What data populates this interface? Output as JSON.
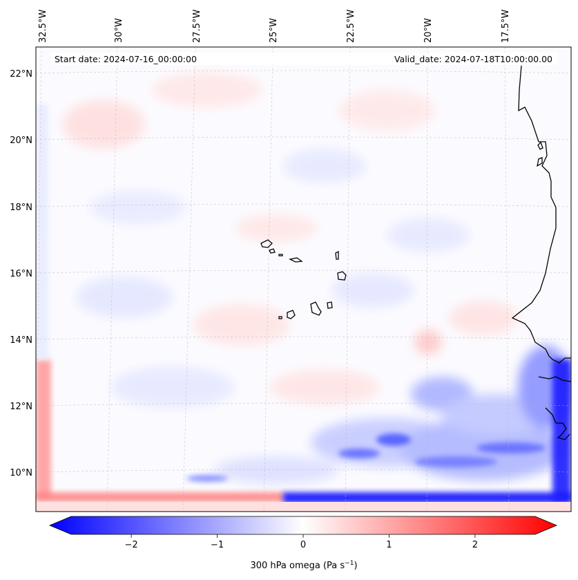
{
  "map": {
    "start_date": "Start date: 2024-07-16_00:00:00",
    "valid_date": "Valid_date: 2024-07-18T10:00:00.00",
    "lon_labels": [
      "32.5°W",
      "30°W",
      "27.5°W",
      "25°W",
      "22.5°W",
      "20°W",
      "17.5°W"
    ],
    "lat_labels": [
      "22°N",
      "20°N",
      "18°N",
      "16°N",
      "14°N",
      "12°N",
      "10°N"
    ]
  },
  "colorbar": {
    "label_main": "300 hPa omega (Pa s",
    "label_exp": "−1",
    "label_close": ")",
    "ticks": [
      "−2",
      "−1",
      "0",
      "1",
      "2"
    ],
    "range": [
      -2.7,
      2.7
    ],
    "colors": {
      "low": "#0000ff",
      "mid": "#ffffff",
      "high": "#ff0000"
    }
  }
}
